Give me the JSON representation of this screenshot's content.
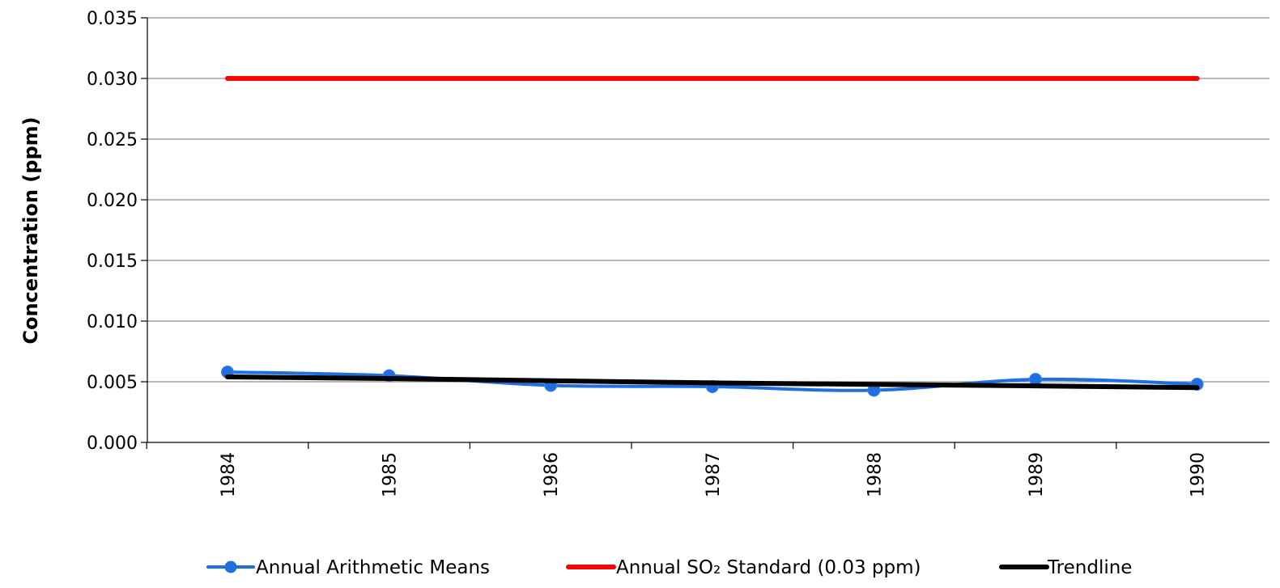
{
  "chart_data": {
    "type": "line",
    "title": "",
    "xlabel": "",
    "ylabel": "Concentration (ppm)",
    "categories": [
      "1984",
      "1985",
      "1986",
      "1987",
      "1988",
      "1989",
      "1990"
    ],
    "ylim": [
      0,
      0.035
    ],
    "yticks": [
      0.0,
      0.005,
      0.01,
      0.015,
      0.02,
      0.025,
      0.03,
      0.035
    ],
    "ytick_labels": [
      "0.000",
      "0.005",
      "0.010",
      "0.015",
      "0.020",
      "0.025",
      "0.030",
      "0.035"
    ],
    "grid": true,
    "legend_position": "bottom",
    "series": [
      {
        "name": "Annual Arithmetic Means",
        "color": "#1f6fe0",
        "marker": "circle",
        "smooth": true,
        "values": [
          0.0058,
          0.0055,
          0.0047,
          0.0046,
          0.0043,
          0.0052,
          0.0048
        ]
      },
      {
        "name": "Annual SO₂ Standard (0.03 ppm)",
        "color": "#ff0000",
        "marker": "none",
        "values": [
          0.03,
          0.03,
          0.03,
          0.03,
          0.03,
          0.03,
          0.03
        ]
      },
      {
        "name": "Trendline",
        "color": "#000000",
        "marker": "none",
        "values": [
          0.0054,
          0.00527,
          0.00508,
          0.00491,
          0.00478,
          0.00466,
          0.00452
        ]
      }
    ]
  }
}
